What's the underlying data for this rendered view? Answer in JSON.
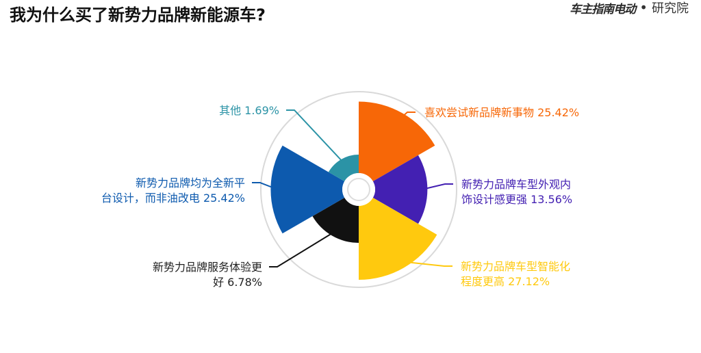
{
  "header": {
    "title": "我为什么买了新势力品牌新能源车?",
    "brand_logo": "车主指南电动",
    "brand_sub": "研究院"
  },
  "chart_data": {
    "type": "pie",
    "variant": "polar-area-rose",
    "title": "我为什么买了新势力品牌新能源车?",
    "slices": [
      {
        "label_lines": [
          "喜欢尝试新品牌新事物 25.42%"
        ],
        "value": 25.42,
        "color": "#F76707"
      },
      {
        "label_lines": [
          "新势力品牌车型外观内",
          "饰设计感更强 13.56%"
        ],
        "value": 13.56,
        "color": "#4320B2"
      },
      {
        "label_lines": [
          "新势力品牌车型智能化",
          "程度更高 27.12%"
        ],
        "value": 27.12,
        "color": "#FFC90E"
      },
      {
        "label_lines": [
          "新势力品牌服务体验更",
          "好 6.78%"
        ],
        "value": 6.78,
        "color": "#111111"
      },
      {
        "label_lines": [
          "新势力品牌均为全新平",
          "台设计，而非油改电 25.42%"
        ],
        "value": 25.42,
        "color": "#0D5AAE"
      },
      {
        "label_lines": [
          "其他 1.69%"
        ],
        "value": 1.69,
        "color": "#2B93A6"
      }
    ],
    "legend": "none",
    "grid": false
  }
}
